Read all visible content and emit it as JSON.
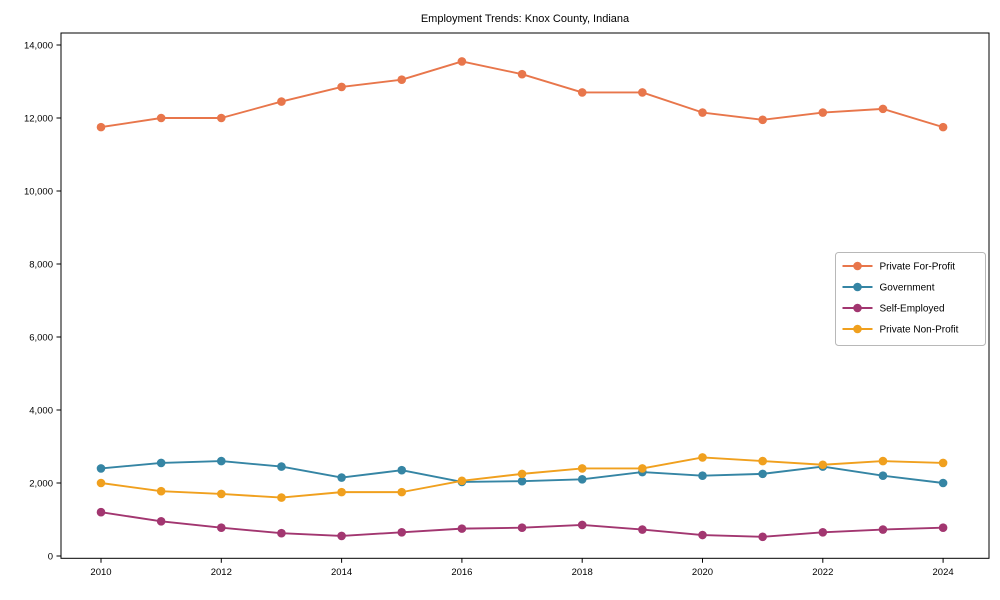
{
  "chart_data": {
    "type": "line",
    "title": "Employment Trends: Knox County, Indiana",
    "xlabel": "",
    "ylabel": "",
    "grid": false,
    "legend_position": "center-right",
    "x": [
      2010,
      2011,
      2012,
      2013,
      2014,
      2015,
      2016,
      2017,
      2018,
      2019,
      2020,
      2021,
      2022,
      2023,
      2024
    ],
    "xtick_labels": [
      "2010",
      "2012",
      "2014",
      "2016",
      "2018",
      "2020",
      "2022",
      "2024"
    ],
    "xtick_values": [
      2010,
      2012,
      2014,
      2016,
      2018,
      2020,
      2022,
      2024
    ],
    "ytick_values": [
      0,
      2000,
      4000,
      6000,
      8000,
      10000,
      12000,
      14000
    ],
    "ytick_labels": [
      "0",
      "2,000",
      "4,000",
      "6,000",
      "8,000",
      "10,000",
      "12,000",
      "14,000"
    ],
    "ylim": [
      0,
      14400
    ],
    "series": [
      {
        "name": "Private For-Profit",
        "color": "#E8764B",
        "values": [
          11750,
          12000,
          12000,
          12450,
          12850,
          13050,
          13550,
          13200,
          12700,
          12700,
          12150,
          11950,
          12150,
          12250,
          11750
        ]
      },
      {
        "name": "Government",
        "color": "#3585A4",
        "values": [
          2400,
          2550,
          2600,
          2450,
          2150,
          2350,
          2030,
          2050,
          2100,
          2300,
          2200,
          2250,
          2450,
          2200,
          2000
        ]
      },
      {
        "name": "Self-Employed",
        "color": "#A23670",
        "values": [
          1200,
          950,
          775,
          625,
          550,
          650,
          750,
          775,
          850,
          725,
          575,
          525,
          650,
          725,
          775
        ]
      },
      {
        "name": "Private Non-Profit",
        "color": "#F0A01E",
        "values": [
          2000,
          1775,
          1700,
          1600,
          1750,
          1750,
          2060,
          2250,
          2400,
          2400,
          2700,
          2600,
          2500,
          2600,
          2550
        ]
      }
    ],
    "colors": {
      "axis": "#000000",
      "legend_border": "#b8b8b8",
      "background": "#ffffff"
    }
  }
}
